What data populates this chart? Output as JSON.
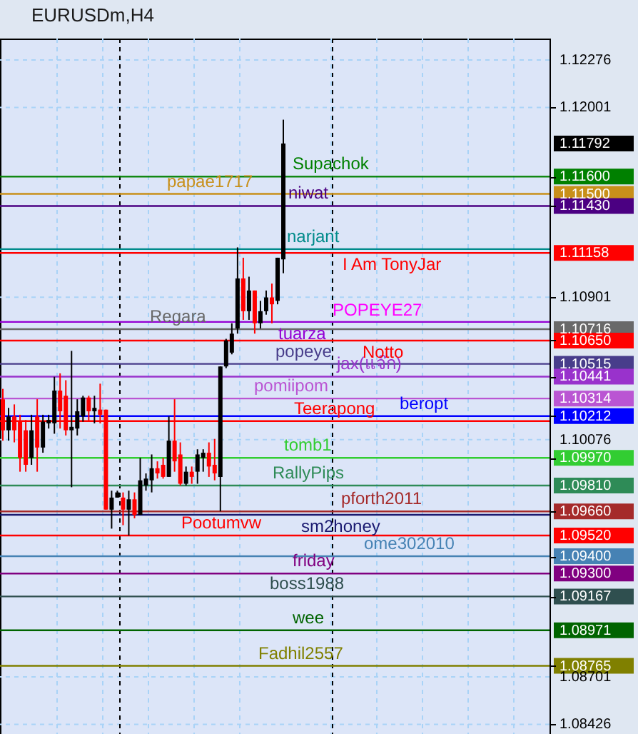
{
  "chart_data": {
    "type": "candlestick",
    "title": "EURUSDm,H4",
    "categories": [
      null,
      null,
      null,
      null,
      null,
      null,
      null,
      null,
      null,
      null,
      null,
      null,
      null,
      null,
      null,
      null,
      null,
      null,
      null,
      null,
      null,
      null,
      null,
      null,
      null,
      null,
      null,
      null,
      null,
      null,
      null,
      null,
      null,
      null,
      null,
      null,
      null,
      null,
      null,
      null,
      null,
      null,
      null,
      null,
      null,
      null,
      null,
      null,
      null,
      null,
      null,
      null,
      null,
      null,
      null,
      null,
      null,
      null,
      null,
      null,
      null,
      null,
      null,
      null,
      null,
      null,
      null,
      null,
      null,
      null,
      null,
      null,
      null,
      null,
      null,
      null,
      null,
      null,
      null,
      null,
      null,
      null,
      null,
      null,
      null,
      null,
      null,
      null,
      null,
      null,
      null,
      null,
      null,
      null,
      null,
      null
    ],
    "ohlc": [
      [
        1.1031,
        1.1037,
        1.1007,
        1.1013
      ],
      [
        1.1013,
        1.1026,
        1.1007,
        1.1021
      ],
      [
        1.1021,
        1.1028,
        1.1006,
        1.1013
      ],
      [
        1.1018,
        1.1022,
        1.0989,
        1.0997
      ],
      [
        1.1013,
        1.1019,
        1.0989,
        1.0993
      ],
      [
        1.0997,
        1.1022,
        1.0993,
        1.1013
      ],
      [
        1.1021,
        1.1031,
        1.0989,
        1.1003
      ],
      [
        1.1003,
        1.1022,
        1.1,
        1.1018
      ],
      [
        1.1017,
        1.1022,
        1.1014,
        1.1019
      ],
      [
        1.1017,
        1.1044,
        1.1011,
        1.1036
      ],
      [
        1.1036,
        1.1046,
        1.1014,
        1.1024
      ],
      [
        1.1033,
        1.1042,
        1.101,
        1.1013
      ],
      [
        1.1013,
        1.1059,
        1.098,
        1.1015
      ],
      [
        1.1014,
        1.1031,
        1.101,
        1.1024
      ],
      [
        1.1021,
        1.1033,
        1.1018,
        1.1032
      ],
      [
        1.1032,
        1.1033,
        1.1018,
        1.1024
      ],
      [
        1.1024,
        1.1033,
        1.1017,
        1.1026
      ],
      [
        1.1025,
        1.104,
        1.1017,
        1.1022
      ],
      [
        1.1025,
        1.1025,
        1.0967,
        1.0967
      ],
      [
        1.0967,
        1.0978,
        1.0956,
        1.0974
      ],
      [
        1.0974,
        1.0978,
        1.0974,
        1.0977
      ],
      [
        1.0974,
        1.0977,
        1.0958,
        1.0967
      ],
      [
        1.0967,
        1.0978,
        1.0952,
        1.0973
      ],
      [
        1.0973,
        1.0977,
        1.0962,
        1.0964
      ],
      [
        1.0964,
        1.0997,
        1.0964,
        1.0984
      ],
      [
        1.0981,
        1.0988,
        1.0978,
        1.0985
      ],
      [
        1.0984,
        1.0999,
        1.0977,
        1.0991
      ],
      [
        1.0991,
        1.0995,
        1.0985,
        1.0988
      ],
      [
        1.0993,
        1.0997,
        1.0985,
        1.0986
      ],
      [
        1.0986,
        1.1021,
        1.0986,
        1.1007
      ],
      [
        1.1007,
        1.1031,
        1.0989,
        1.0995
      ],
      [
        1.0999,
        1.1006,
        1.0981,
        1.0982
      ],
      [
        1.0982,
        1.0992,
        1.0981,
        1.0989
      ],
      [
        1.0989,
        1.0992,
        1.0982,
        1.0986
      ],
      [
        1.0989,
        1.1002,
        1.0982,
        1.0999
      ],
      [
        1.0997,
        1.1002,
        1.0989,
        1.1
      ],
      [
        1.1,
        1.1006,
        1.0986,
        1.0992
      ],
      [
        1.0993,
        1.1008,
        1.0984,
        1.0988
      ],
      [
        1.0986,
        1.105,
        1.0966,
        1.105
      ],
      [
        1.105,
        1.1066,
        1.1049,
        1.1065
      ],
      [
        1.1058,
        1.1075,
        1.1057,
        1.1069
      ],
      [
        1.1072,
        1.1119,
        1.1069,
        1.1101
      ],
      [
        1.1101,
        1.1113,
        1.1077,
        1.1082
      ],
      [
        1.1082,
        1.1102,
        1.1077,
        1.1094
      ],
      [
        1.1094,
        1.1094,
        1.1069,
        1.1075
      ],
      [
        1.1075,
        1.1088,
        1.1072,
        1.1082
      ],
      [
        1.1082,
        1.1094,
        1.108,
        1.109
      ],
      [
        1.109,
        1.1098,
        1.1075,
        1.1086
      ],
      [
        1.1088,
        1.1113,
        1.1086,
        1.1113
      ],
      [
        1.1112,
        1.1193,
        1.1104,
        1.11792
      ],
      null,
      null,
      null,
      null,
      null,
      null,
      null,
      null,
      null,
      null,
      null,
      null,
      null,
      null,
      null,
      null,
      null,
      null,
      null,
      null,
      null,
      null,
      null,
      null,
      null,
      null,
      null,
      null,
      null,
      null,
      null,
      null,
      null,
      null,
      null,
      null,
      null,
      null,
      null,
      null,
      null,
      null,
      null,
      null,
      null,
      null
    ],
    "ylim": [
      1.0837,
      1.124
    ],
    "yticks": [
      1.12276,
      1.12001,
      1.11792,
      {
        "value": 1.116,
        "label": "1.11600"
      },
      {
        "value": 1.115,
        "label": "1.11500"
      },
      {
        "value": 1.1143,
        "label": "1.11430"
      },
      1.11158,
      1.10901,
      1.10716,
      {
        "value": 1.1065,
        "label": "1.10650"
      },
      1.10515,
      1.10441,
      1.10314,
      1.10212,
      1.10076,
      {
        "value": 1.0997,
        "label": "1.09970"
      },
      {
        "value": 1.0981,
        "label": "1.09810"
      },
      {
        "value": 1.0966,
        "label": "1.09660"
      },
      {
        "value": 1.0952,
        "label": "1.09520"
      },
      {
        "value": 1.094,
        "label": "1.09400"
      },
      {
        "value": 1.093,
        "label": "1.09300"
      },
      1.09167,
      1.08971,
      1.08765,
      1.08701,
      1.08426
    ],
    "grid": true,
    "ref_lines": [
      {
        "axis": "y",
        "value": 1.116,
        "label": "Supachok",
        "color": "#008000"
      },
      {
        "axis": "y",
        "value": 1.115,
        "label": "papae1717",
        "color": "#c8901a"
      },
      {
        "axis": "y",
        "value": 1.1143,
        "label": "niwat",
        "color": "#4b0082"
      },
      {
        "axis": "y",
        "value": 1.1118,
        "label": "narjant",
        "color": "#008b8b"
      },
      {
        "axis": "y",
        "value": 1.11158,
        "label": "I Am TonyJar",
        "color": "#ff0000"
      },
      {
        "axis": "y",
        "value": 1.10758,
        "label": "tuarza",
        "color": "#9400d3"
      },
      {
        "axis": "y",
        "value": 1.10716,
        "label": "Regara",
        "color": "#696969"
      },
      {
        "axis": "y",
        "value": 1.1065,
        "label": "Notto",
        "color": "#ff0000"
      },
      {
        "axis": "y",
        "value": 1.10515,
        "label": "popeye",
        "color": "#483d8b"
      },
      {
        "axis": "y",
        "value": 1.10441,
        "label": "jax(แจ๊ก)",
        "color": "#9932cc"
      },
      {
        "axis": "y",
        "value": 1.10314,
        "label": "pomiipom",
        "color": "#ba55d3"
      },
      {
        "axis": "y",
        "value": 1.10212,
        "label": "beropt",
        "color": "#0000ff"
      },
      {
        "axis": "y",
        "value": 1.10183,
        "label": "Teerapong",
        "color": "#ff0000"
      },
      {
        "axis": "y",
        "value": 1.0997,
        "label": "tomb1",
        "color": "#32cd32"
      },
      {
        "axis": "y",
        "value": 1.0981,
        "label": "RallyPips",
        "color": "#2e8b57"
      },
      {
        "axis": "y",
        "value": 1.0966,
        "label": "pforth2011",
        "color": "#a52a2a"
      },
      {
        "axis": "y",
        "value": 1.0964,
        "label": "sm2honey",
        "color": "#191970"
      },
      {
        "axis": "y",
        "value": 1.0952,
        "label": "Pootumvw",
        "color": "#ff0000"
      },
      {
        "axis": "y",
        "value": 1.094,
        "label": "ome302010",
        "color": "#4682b4"
      },
      {
        "axis": "y",
        "value": 1.093,
        "label": "friday",
        "color": "#800080"
      },
      {
        "axis": "y",
        "value": 1.09167,
        "label": "boss1988",
        "color": "#2f4f4f"
      },
      {
        "axis": "y",
        "value": 1.08971,
        "label": "wee",
        "color": "#006400"
      },
      {
        "axis": "y",
        "value": 1.08765,
        "label": "Fadhil2557",
        "color": "#808000"
      }
    ],
    "annotations": [
      "POPEYE27"
    ]
  }
}
